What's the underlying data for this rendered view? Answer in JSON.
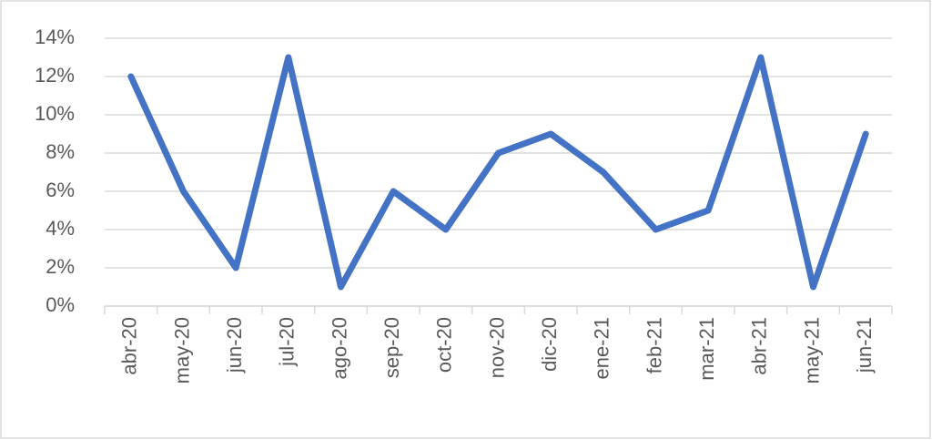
{
  "chart_data": {
    "type": "line",
    "categories": [
      "abr-20",
      "may-20",
      "jun-20",
      "jul-20",
      "ago-20",
      "sep-20",
      "oct-20",
      "nov-20",
      "dic-20",
      "ene-21",
      "feb-21",
      "mar-21",
      "abr-21",
      "may-21",
      "jun-21"
    ],
    "values": [
      12,
      6,
      2,
      13,
      1,
      6,
      4,
      8,
      9,
      7,
      4,
      5,
      13,
      1,
      9
    ],
    "color": "#4472c4",
    "ylim": [
      0,
      14
    ],
    "yticks": [
      {
        "value": 0,
        "label": "0%"
      },
      {
        "value": 2,
        "label": "2%"
      },
      {
        "value": 4,
        "label": "4%"
      },
      {
        "value": 6,
        "label": "6%"
      },
      {
        "value": 8,
        "label": "8%"
      },
      {
        "value": 10,
        "label": "10%"
      },
      {
        "value": 12,
        "label": "12%"
      },
      {
        "value": 14,
        "label": "14%"
      }
    ],
    "grid": true
  }
}
